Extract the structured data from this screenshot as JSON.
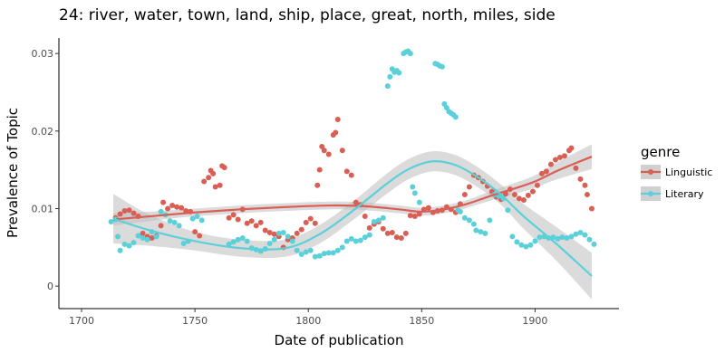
{
  "chart_data": {
    "type": "scatter",
    "title": "24: river, water, town, land, ship, place, great, north, miles, side",
    "xlabel": "Date of publication",
    "ylabel": "Prevalence of Topic",
    "xlim": [
      1690,
      1937
    ],
    "ylim": [
      -0.0029,
      0.032
    ],
    "x_ticks": [
      1700,
      1750,
      1800,
      1850,
      1900
    ],
    "y_ticks": [
      0,
      0.01,
      0.02,
      0.03
    ],
    "y_tick_labels": [
      "0",
      "0.01",
      "0.02",
      "0.03"
    ],
    "grid": false,
    "legend": {
      "title": "genre",
      "position": "right"
    },
    "series": [
      {
        "name": "Linguistic",
        "color": "#d95f55",
        "points": [
          [
            1715,
            0.0088
          ],
          [
            1717,
            0.0093
          ],
          [
            1719,
            0.0097
          ],
          [
            1721,
            0.0098
          ],
          [
            1723,
            0.0094
          ],
          [
            1725,
            0.009
          ],
          [
            1727,
            0.0068
          ],
          [
            1729,
            0.0064
          ],
          [
            1731,
            0.0062
          ],
          [
            1733,
            0.0065
          ],
          [
            1735,
            0.0078
          ],
          [
            1736,
            0.0108
          ],
          [
            1738,
            0.01
          ],
          [
            1740,
            0.0104
          ],
          [
            1742,
            0.0102
          ],
          [
            1744,
            0.0101
          ],
          [
            1746,
            0.0097
          ],
          [
            1748,
            0.0096
          ],
          [
            1750,
            0.007
          ],
          [
            1752,
            0.0065
          ],
          [
            1754,
            0.0135
          ],
          [
            1756,
            0.014
          ],
          [
            1757,
            0.0149
          ],
          [
            1758,
            0.0145
          ],
          [
            1759,
            0.0128
          ],
          [
            1761,
            0.013
          ],
          [
            1762,
            0.0155
          ],
          [
            1763,
            0.0153
          ],
          [
            1765,
            0.0088
          ],
          [
            1767,
            0.0092
          ],
          [
            1769,
            0.0086
          ],
          [
            1771,
            0.0099
          ],
          [
            1773,
            0.0081
          ],
          [
            1775,
            0.0084
          ],
          [
            1777,
            0.0078
          ],
          [
            1779,
            0.0082
          ],
          [
            1781,
            0.0072
          ],
          [
            1783,
            0.0069
          ],
          [
            1785,
            0.0067
          ],
          [
            1787,
            0.0064
          ],
          [
            1789,
            0.005
          ],
          [
            1791,
            0.006
          ],
          [
            1793,
            0.0062
          ],
          [
            1795,
            0.0068
          ],
          [
            1797,
            0.0073
          ],
          [
            1799,
            0.0082
          ],
          [
            1801,
            0.0087
          ],
          [
            1803,
            0.0081
          ],
          [
            1804,
            0.013
          ],
          [
            1805,
            0.015
          ],
          [
            1806,
            0.018
          ],
          [
            1807,
            0.0175
          ],
          [
            1809,
            0.017
          ],
          [
            1811,
            0.0195
          ],
          [
            1812,
            0.0198
          ],
          [
            1813,
            0.0215
          ],
          [
            1815,
            0.0175
          ],
          [
            1817,
            0.0148
          ],
          [
            1819,
            0.0143
          ],
          [
            1821,
            0.0108
          ],
          [
            1823,
            0.0105
          ],
          [
            1825,
            0.009
          ],
          [
            1827,
            0.0075
          ],
          [
            1829,
            0.008
          ],
          [
            1831,
            0.0083
          ],
          [
            1833,
            0.0074
          ],
          [
            1835,
            0.0068
          ],
          [
            1837,
            0.0069
          ],
          [
            1839,
            0.0063
          ],
          [
            1841,
            0.0062
          ],
          [
            1843,
            0.0068
          ],
          [
            1845,
            0.0091
          ],
          [
            1847,
            0.009
          ],
          [
            1849,
            0.0093
          ],
          [
            1851,
            0.0099
          ],
          [
            1853,
            0.0101
          ],
          [
            1855,
            0.0095
          ],
          [
            1857,
            0.0097
          ],
          [
            1859,
            0.0098
          ],
          [
            1861,
            0.0102
          ],
          [
            1863,
            0.0099
          ],
          [
            1865,
            0.0095
          ],
          [
            1867,
            0.0106
          ],
          [
            1869,
            0.0118
          ],
          [
            1871,
            0.0128
          ],
          [
            1873,
            0.0143
          ],
          [
            1875,
            0.014
          ],
          [
            1877,
            0.0135
          ],
          [
            1879,
            0.0129
          ],
          [
            1881,
            0.0122
          ],
          [
            1883,
            0.0115
          ],
          [
            1885,
            0.0112
          ],
          [
            1887,
            0.0119
          ],
          [
            1889,
            0.0125
          ],
          [
            1891,
            0.0118
          ],
          [
            1893,
            0.0113
          ],
          [
            1895,
            0.0111
          ],
          [
            1897,
            0.0117
          ],
          [
            1899,
            0.0122
          ],
          [
            1901,
            0.013
          ],
          [
            1903,
            0.0145
          ],
          [
            1905,
            0.0148
          ],
          [
            1907,
            0.0157
          ],
          [
            1909,
            0.0163
          ],
          [
            1911,
            0.0166
          ],
          [
            1913,
            0.0168
          ],
          [
            1915,
            0.0175
          ],
          [
            1916,
            0.0178
          ],
          [
            1918,
            0.0152
          ],
          [
            1920,
            0.0138
          ],
          [
            1922,
            0.013
          ],
          [
            1923,
            0.0118
          ],
          [
            1925,
            0.01
          ]
        ],
        "smooth": [
          [
            1714,
            0.0086
          ],
          [
            1730,
            0.009
          ],
          [
            1750,
            0.0095
          ],
          [
            1770,
            0.0099
          ],
          [
            1790,
            0.0102
          ],
          [
            1810,
            0.0104
          ],
          [
            1825,
            0.0103
          ],
          [
            1840,
            0.0099
          ],
          [
            1850,
            0.0096
          ],
          [
            1860,
            0.0099
          ],
          [
            1870,
            0.0106
          ],
          [
            1880,
            0.0116
          ],
          [
            1890,
            0.0125
          ],
          [
            1900,
            0.0135
          ],
          [
            1910,
            0.0149
          ],
          [
            1925,
            0.0167
          ]
        ],
        "band_halfwidth": [
          0.0008,
          0.0006,
          0.0005,
          0.0005,
          0.0005,
          0.0005,
          0.0005,
          0.0005,
          0.0005,
          0.0005,
          0.0005,
          0.0006,
          0.0007,
          0.0008,
          0.0011,
          0.0016
        ]
      },
      {
        "name": "Literary",
        "color": "#5bd0d8",
        "points": [
          [
            1713,
            0.0083
          ],
          [
            1715,
            0.0086
          ],
          [
            1716,
            0.0064
          ],
          [
            1717,
            0.0046
          ],
          [
            1719,
            0.0054
          ],
          [
            1721,
            0.0052
          ],
          [
            1723,
            0.0056
          ],
          [
            1725,
            0.0065
          ],
          [
            1727,
            0.0062
          ],
          [
            1729,
            0.006
          ],
          [
            1731,
            0.007
          ],
          [
            1733,
            0.0064
          ],
          [
            1735,
            0.0096
          ],
          [
            1737,
            0.0092
          ],
          [
            1739,
            0.0084
          ],
          [
            1741,
            0.0082
          ],
          [
            1743,
            0.0078
          ],
          [
            1745,
            0.0055
          ],
          [
            1747,
            0.0058
          ],
          [
            1749,
            0.0087
          ],
          [
            1751,
            0.009
          ],
          [
            1753,
            0.0085
          ],
          [
            1765,
            0.0054
          ],
          [
            1767,
            0.0057
          ],
          [
            1769,
            0.006
          ],
          [
            1771,
            0.0062
          ],
          [
            1773,
            0.0058
          ],
          [
            1775,
            0.0049
          ],
          [
            1777,
            0.0047
          ],
          [
            1779,
            0.0045
          ],
          [
            1781,
            0.0048
          ],
          [
            1783,
            0.0055
          ],
          [
            1785,
            0.006
          ],
          [
            1787,
            0.0068
          ],
          [
            1789,
            0.0069
          ],
          [
            1791,
            0.0064
          ],
          [
            1793,
            0.0058
          ],
          [
            1795,
            0.0046
          ],
          [
            1797,
            0.0041
          ],
          [
            1799,
            0.0044
          ],
          [
            1801,
            0.0046
          ],
          [
            1803,
            0.0038
          ],
          [
            1805,
            0.0039
          ],
          [
            1807,
            0.0042
          ],
          [
            1809,
            0.0043
          ],
          [
            1811,
            0.0043
          ],
          [
            1813,
            0.0046
          ],
          [
            1815,
            0.005
          ],
          [
            1817,
            0.0058
          ],
          [
            1819,
            0.0061
          ],
          [
            1821,
            0.0058
          ],
          [
            1823,
            0.0059
          ],
          [
            1825,
            0.0063
          ],
          [
            1827,
            0.0066
          ],
          [
            1829,
            0.0083
          ],
          [
            1831,
            0.0085
          ],
          [
            1833,
            0.0088
          ],
          [
            1835,
            0.0258
          ],
          [
            1836,
            0.027
          ],
          [
            1837,
            0.028
          ],
          [
            1838,
            0.0276
          ],
          [
            1839,
            0.0278
          ],
          [
            1840,
            0.0275
          ],
          [
            1842,
            0.03
          ],
          [
            1843,
            0.0302
          ],
          [
            1844,
            0.0303
          ],
          [
            1845,
            0.03
          ],
          [
            1846,
            0.0128
          ],
          [
            1847,
            0.012
          ],
          [
            1849,
            0.0108
          ],
          [
            1856,
            0.0287
          ],
          [
            1857,
            0.0286
          ],
          [
            1858,
            0.0284
          ],
          [
            1859,
            0.0283
          ],
          [
            1860,
            0.0235
          ],
          [
            1861,
            0.023
          ],
          [
            1862,
            0.0225
          ],
          [
            1863,
            0.0223
          ],
          [
            1864,
            0.0221
          ],
          [
            1865,
            0.0218
          ],
          [
            1866,
            0.0098
          ],
          [
            1867,
            0.0096
          ],
          [
            1869,
            0.0088
          ],
          [
            1871,
            0.0085
          ],
          [
            1873,
            0.008
          ],
          [
            1874,
            0.0072
          ],
          [
            1876,
            0.007
          ],
          [
            1878,
            0.0068
          ],
          [
            1880,
            0.0085
          ],
          [
            1882,
            0.0118
          ],
          [
            1884,
            0.0116
          ],
          [
            1886,
            0.0113
          ],
          [
            1888,
            0.0098
          ],
          [
            1890,
            0.0064
          ],
          [
            1892,
            0.0057
          ],
          [
            1894,
            0.0053
          ],
          [
            1896,
            0.0051
          ],
          [
            1898,
            0.0053
          ],
          [
            1900,
            0.0058
          ],
          [
            1902,
            0.0063
          ],
          [
            1904,
            0.0064
          ],
          [
            1906,
            0.0062
          ],
          [
            1908,
            0.0063
          ],
          [
            1910,
            0.0061
          ],
          [
            1912,
            0.0063
          ],
          [
            1914,
            0.0062
          ],
          [
            1916,
            0.0064
          ],
          [
            1918,
            0.0067
          ],
          [
            1920,
            0.0069
          ],
          [
            1922,
            0.0066
          ],
          [
            1924,
            0.006
          ],
          [
            1926,
            0.0054
          ]
        ],
        "smooth": [
          [
            1714,
            0.0087
          ],
          [
            1730,
            0.0072
          ],
          [
            1750,
            0.0058
          ],
          [
            1770,
            0.0049
          ],
          [
            1790,
            0.0049
          ],
          [
            1805,
            0.0067
          ],
          [
            1820,
            0.0098
          ],
          [
            1835,
            0.0133
          ],
          [
            1845,
            0.0152
          ],
          [
            1855,
            0.0161
          ],
          [
            1865,
            0.0156
          ],
          [
            1875,
            0.014
          ],
          [
            1885,
            0.0118
          ],
          [
            1895,
            0.009
          ],
          [
            1910,
            0.0053
          ],
          [
            1925,
            0.0013
          ]
        ],
        "band_halfwidth": [
          0.0032,
          0.002,
          0.0012,
          0.0011,
          0.0011,
          0.0012,
          0.0012,
          0.0013,
          0.0013,
          0.0013,
          0.0013,
          0.0013,
          0.0013,
          0.0016,
          0.0022,
          0.003
        ]
      }
    ]
  }
}
